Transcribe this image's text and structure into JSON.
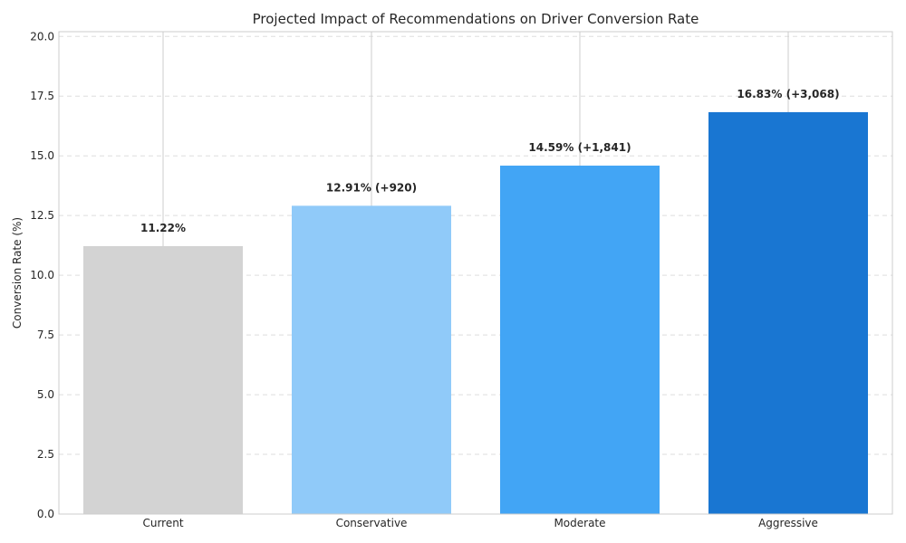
{
  "chart_data": {
    "type": "bar",
    "title": "Projected Impact of Recommendations on Driver Conversion Rate",
    "xlabel": "",
    "ylabel": "Conversion Rate (%)",
    "ylim": [
      0,
      20.2
    ],
    "yticks": [
      "0.0",
      "2.5",
      "5.0",
      "7.5",
      "10.0",
      "12.5",
      "15.0",
      "17.5",
      "20.0"
    ],
    "ytick_values": [
      0,
      2.5,
      5,
      7.5,
      10,
      12.5,
      15,
      17.5,
      20
    ],
    "categories": [
      "Current",
      "Conservative",
      "Moderate",
      "Aggressive"
    ],
    "values": [
      11.22,
      12.91,
      14.59,
      16.83
    ],
    "data_labels": [
      "11.22%",
      "12.91% (+920)",
      "14.59% (+1,841)",
      "16.83% (+3,068)"
    ],
    "colors": [
      "#d3d3d3",
      "#90caf9",
      "#42a5f5",
      "#1976d2"
    ],
    "grid": true,
    "grid_style": "dashed",
    "legend": "none"
  }
}
